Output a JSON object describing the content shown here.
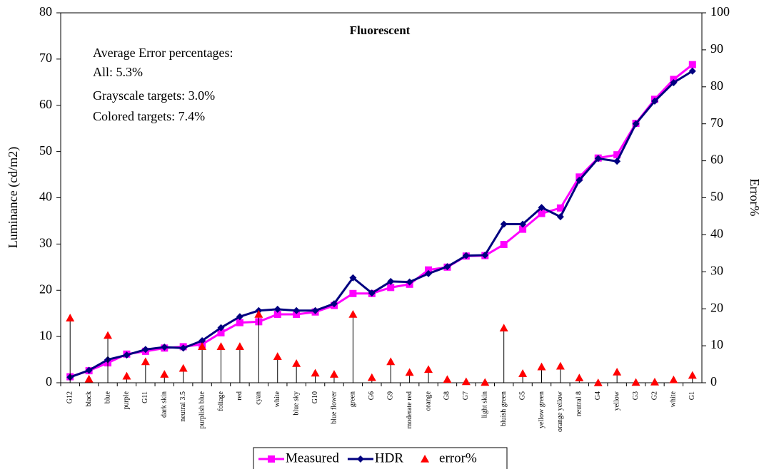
{
  "chart_data": {
    "type": "line",
    "title": "Fluorescent",
    "annotations": [
      "Average Error percentages:",
      "All: 5.3%",
      "Grayscale targets: 3.0%",
      "Colored targets: 7.4%"
    ],
    "y_label": "Luminance (cd/m2)",
    "y2_label": "Error%",
    "categories": [
      "G12",
      "black",
      "blue",
      "purple",
      "G11",
      "dark skin",
      "neutral 3.5",
      "purplish blue",
      "foliage",
      "red",
      "cyan",
      "white",
      "blue sky",
      "G10",
      "blue flower",
      "green",
      "G6",
      "G9",
      "moderate red",
      "orange",
      "G8",
      "G7",
      "light skin",
      "bluish green",
      "G5",
      "yellow green",
      "orange yellow",
      "neutral 8",
      "G4",
      "yellow",
      "G3",
      "G2",
      "white",
      "G1"
    ],
    "series": [
      {
        "name": "Measured",
        "color": "#ff00ff",
        "marker": "square",
        "line": true,
        "values": [
          1.3,
          2.6,
          4.3,
          6.2,
          6.8,
          7.5,
          7.8,
          8.3,
          10.8,
          13.0,
          13.2,
          14.8,
          14.8,
          15.3,
          16.7,
          19.3,
          19.3,
          20.6,
          21.3,
          24.4,
          25.0,
          27.4,
          27.5,
          29.9,
          33.2,
          36.6,
          37.8,
          44.5,
          48.6,
          49.3,
          56.1,
          61.3,
          65.6,
          68.8
        ]
      },
      {
        "name": "HDR",
        "color": "#000080",
        "marker": "diamond",
        "line": true,
        "values": [
          1.2,
          2.7,
          5.0,
          6.0,
          7.2,
          7.7,
          7.5,
          9.1,
          11.9,
          14.3,
          15.6,
          15.9,
          15.6,
          15.6,
          17.1,
          22.7,
          19.4,
          21.9,
          21.8,
          23.6,
          25.1,
          27.5,
          27.6,
          34.3,
          34.3,
          37.9,
          35.9,
          43.8,
          48.5,
          47.9,
          56.0,
          60.9,
          64.9,
          67.4
        ]
      },
      {
        "name": "error%",
        "color": "#ff0000",
        "marker": "triangle",
        "line": false,
        "droplines": true,
        "axis": "y2",
        "values": [
          17.5,
          1.0,
          12.8,
          1.8,
          5.7,
          2.3,
          3.9,
          9.8,
          9.8,
          9.8,
          18.5,
          7.1,
          5.2,
          2.6,
          2.3,
          18.5,
          1.4,
          5.7,
          2.8,
          3.6,
          0.9,
          0.3,
          0.1,
          14.8,
          2.5,
          4.3,
          4.5,
          1.3,
          0.0,
          2.9,
          0.1,
          0.2,
          0.8,
          2.0
        ]
      }
    ],
    "ylim": [
      0,
      80
    ],
    "yticks": [
      0,
      10,
      20,
      30,
      40,
      50,
      60,
      70,
      80
    ],
    "y2lim": [
      0,
      100
    ],
    "y2ticks": [
      0,
      10,
      20,
      30,
      40,
      50,
      60,
      70,
      80,
      90,
      100
    ],
    "legend": "bottom"
  }
}
